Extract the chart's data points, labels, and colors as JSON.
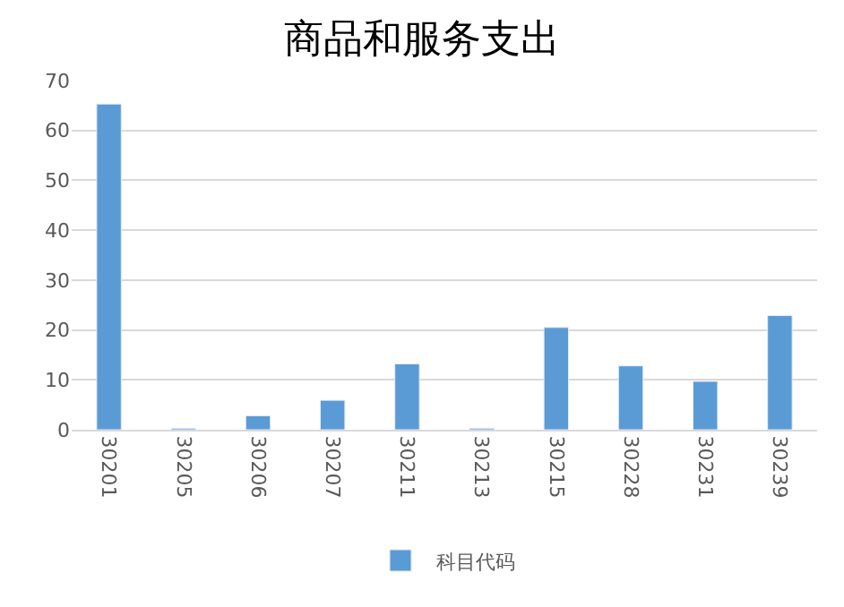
{
  "chart_data": {
    "type": "bar",
    "title": "商品和服务支出",
    "categories": [
      "30201",
      "30205",
      "30206",
      "30207",
      "30211",
      "30213",
      "30215",
      "30228",
      "30231",
      "30239"
    ],
    "series": [
      {
        "name": "科目代码",
        "color": "#5b9bd5",
        "values": [
          65.3,
          0.3,
          2.8,
          5.9,
          13.2,
          0.3,
          20.5,
          12.8,
          9.7,
          22.9
        ]
      }
    ],
    "ylim": [
      0,
      70
    ],
    "yticks": [
      0,
      10,
      20,
      30,
      40,
      50,
      60,
      70
    ],
    "grid": "y",
    "legend": "bottom"
  }
}
